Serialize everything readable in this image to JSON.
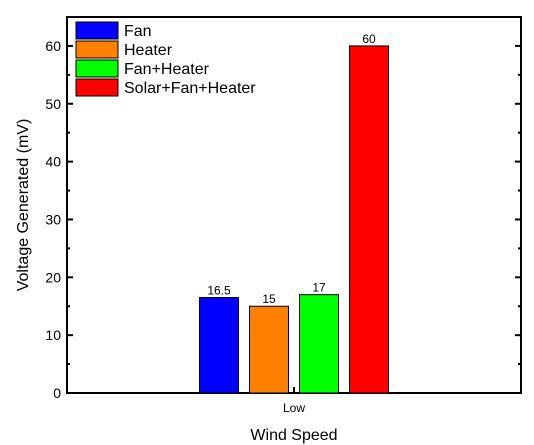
{
  "chart_data": {
    "type": "bar",
    "categories": [
      "Low"
    ],
    "series": [
      {
        "name": "Fan",
        "values": [
          16.5
        ],
        "color": "#0000ff",
        "label": "16.5"
      },
      {
        "name": "Heater",
        "values": [
          15
        ],
        "color": "#ff8000",
        "label": "15"
      },
      {
        "name": "Fan+Heater",
        "values": [
          17
        ],
        "color": "#00ff00",
        "label": "17"
      },
      {
        "name": "Solar+Fan+Heater",
        "values": [
          60
        ],
        "color": "#ff0000",
        "label": "60"
      }
    ],
    "xlabel": "Wind Speed",
    "ylabel": "Voltage Generated (mV)",
    "ylim": [
      0,
      65
    ],
    "yticks": [
      "0",
      "10",
      "20",
      "30",
      "40",
      "50",
      "60"
    ],
    "ytick_values": [
      0,
      10,
      20,
      30,
      40,
      50,
      60
    ],
    "grid": false,
    "legend_position": "top-left"
  }
}
